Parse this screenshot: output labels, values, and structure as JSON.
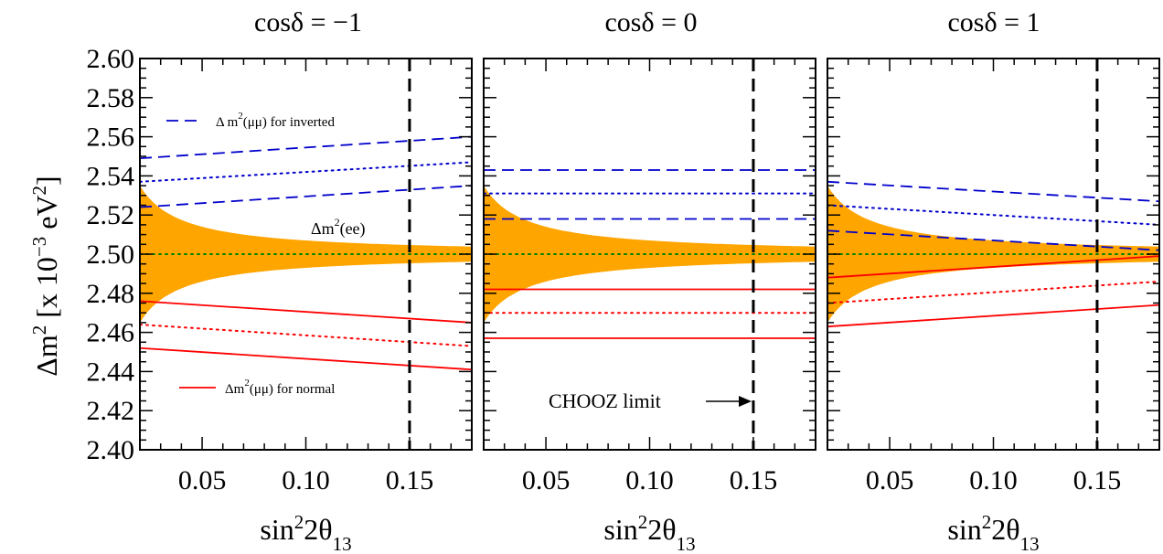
{
  "chart_data": [
    {
      "type": "line",
      "title": "cosδ = −1",
      "xlabel": "sin²2θ₁₃",
      "ylabel": "Δm² [x 10⁻³ eV²]",
      "xlim": [
        0.02,
        0.18
      ],
      "ylim": [
        2.4,
        2.6
      ],
      "x_ticks": [
        "0.05",
        "0.10",
        "0.15"
      ],
      "y_ticks": [
        "2.40",
        "2.42",
        "2.44",
        "2.46",
        "2.48",
        "2.50",
        "2.52",
        "2.54",
        "2.56",
        "2.58",
        "2.60"
      ],
      "grid": false,
      "annotations": {
        "inverted_legend": "Δ m²(μμ) for inverted",
        "ee_label": "Δm²(ee)",
        "normal_legend": "Δm²(μμ) for normal"
      },
      "chooz_limit_x": 0.15,
      "band": {
        "center": 2.5,
        "halfwidth_at_x0": 0.035,
        "x0": 0.02
      },
      "series": [
        {
          "color": "#0000cc",
          "style": "dashed",
          "x": [
            0.02,
            0.18
          ],
          "y": [
            2.549,
            2.56
          ]
        },
        {
          "color": "#0000cc",
          "style": "dotted",
          "x": [
            0.02,
            0.18
          ],
          "y": [
            2.537,
            2.547
          ]
        },
        {
          "color": "#0000cc",
          "style": "dashed",
          "x": [
            0.02,
            0.18
          ],
          "y": [
            2.524,
            2.535
          ]
        },
        {
          "color": "#008000",
          "style": "dotted",
          "x": [
            0.02,
            0.18
          ],
          "y": [
            2.5,
            2.5
          ]
        },
        {
          "color": "#ff0000",
          "style": "solid",
          "x": [
            0.02,
            0.18
          ],
          "y": [
            2.476,
            2.465
          ]
        },
        {
          "color": "#ff0000",
          "style": "dotted",
          "x": [
            0.02,
            0.18
          ],
          "y": [
            2.464,
            2.453
          ]
        },
        {
          "color": "#ff0000",
          "style": "solid",
          "x": [
            0.02,
            0.18
          ],
          "y": [
            2.452,
            2.441
          ]
        }
      ]
    },
    {
      "type": "line",
      "title": "cosδ = 0",
      "xlabel": "sin²2θ₁₃",
      "xlim": [
        0.02,
        0.18
      ],
      "ylim": [
        2.4,
        2.6
      ],
      "x_ticks": [
        "0.05",
        "0.10",
        "0.15"
      ],
      "grid": false,
      "annotations": {
        "chooz_label": "CHOOZ limit"
      },
      "chooz_limit_x": 0.15,
      "band": {
        "center": 2.5,
        "halfwidth_at_x0": 0.035,
        "x0": 0.02
      },
      "series": [
        {
          "color": "#0000cc",
          "style": "dashed",
          "x": [
            0.02,
            0.18
          ],
          "y": [
            2.543,
            2.543
          ]
        },
        {
          "color": "#0000cc",
          "style": "dotted",
          "x": [
            0.02,
            0.18
          ],
          "y": [
            2.531,
            2.531
          ]
        },
        {
          "color": "#0000cc",
          "style": "dashed",
          "x": [
            0.02,
            0.18
          ],
          "y": [
            2.518,
            2.518
          ]
        },
        {
          "color": "#008000",
          "style": "dotted",
          "x": [
            0.02,
            0.18
          ],
          "y": [
            2.5,
            2.5
          ]
        },
        {
          "color": "#ff0000",
          "style": "solid",
          "x": [
            0.02,
            0.18
          ],
          "y": [
            2.482,
            2.482
          ]
        },
        {
          "color": "#ff0000",
          "style": "dotted",
          "x": [
            0.02,
            0.18
          ],
          "y": [
            2.47,
            2.47
          ]
        },
        {
          "color": "#ff0000",
          "style": "solid",
          "x": [
            0.02,
            0.18
          ],
          "y": [
            2.457,
            2.457
          ]
        }
      ]
    },
    {
      "type": "line",
      "title": "cosδ = 1",
      "xlabel": "sin²2θ₁₃",
      "xlim": [
        0.02,
        0.18
      ],
      "ylim": [
        2.4,
        2.6
      ],
      "x_ticks": [
        "0.05",
        "0.10",
        "0.15"
      ],
      "grid": false,
      "chooz_limit_x": 0.15,
      "band": {
        "center": 2.5,
        "halfwidth_at_x0": 0.035,
        "x0": 0.02
      },
      "series": [
        {
          "color": "#0000cc",
          "style": "dashed",
          "x": [
            0.02,
            0.18
          ],
          "y": [
            2.537,
            2.527
          ]
        },
        {
          "color": "#0000cc",
          "style": "dotted",
          "x": [
            0.02,
            0.18
          ],
          "y": [
            2.525,
            2.515
          ]
        },
        {
          "color": "#0000cc",
          "style": "dashed",
          "x": [
            0.02,
            0.18
          ],
          "y": [
            2.512,
            2.502
          ]
        },
        {
          "color": "#008000",
          "style": "dotted",
          "x": [
            0.02,
            0.18
          ],
          "y": [
            2.5,
            2.5
          ]
        },
        {
          "color": "#ff0000",
          "style": "solid",
          "x": [
            0.02,
            0.18
          ],
          "y": [
            2.488,
            2.499
          ]
        },
        {
          "color": "#ff0000",
          "style": "dotted",
          "x": [
            0.02,
            0.18
          ],
          "y": [
            2.475,
            2.486
          ]
        },
        {
          "color": "#ff0000",
          "style": "solid",
          "x": [
            0.02,
            0.18
          ],
          "y": [
            2.463,
            2.474
          ]
        }
      ]
    }
  ],
  "colors": {
    "band": "#ffa500",
    "inverted": "#0000cc",
    "normal": "#ff0000",
    "ee": "#008000",
    "chooz": "#000000"
  }
}
